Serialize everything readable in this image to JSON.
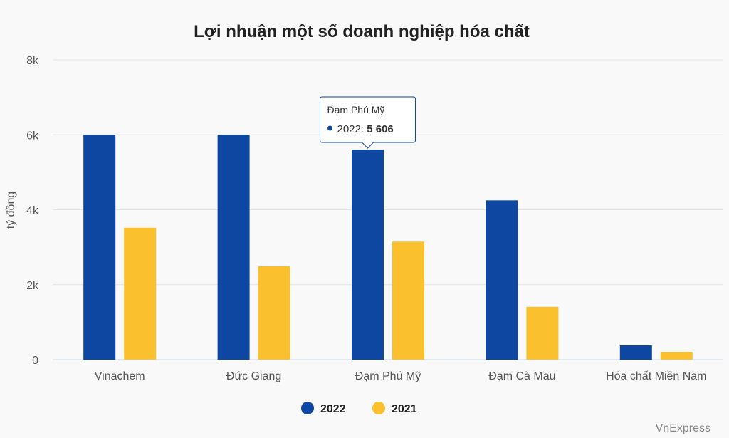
{
  "chart_data": {
    "type": "bar",
    "title": "Lợi nhuận một số doanh nghiệp hóa chất",
    "ylabel": "tỷ đồng",
    "xlabel": "",
    "ylim": [
      0,
      8000
    ],
    "yticks": [
      0,
      2000,
      4000,
      6000,
      8000
    ],
    "ytick_labels": [
      "0",
      "2k",
      "4k",
      "6k",
      "8k"
    ],
    "categories": [
      "Vinachem",
      "Đức Giang",
      "Đạm Phú Mỹ",
      "Đạm Cà Mau",
      "Hóa chất Miền Nam"
    ],
    "series": [
      {
        "name": "2022",
        "color": "#0d47a1",
        "values": [
          6000,
          6000,
          5606,
          4250,
          380
        ]
      },
      {
        "name": "2021",
        "color": "#fbc02d",
        "values": [
          3520,
          2490,
          3150,
          1410,
          210
        ]
      }
    ],
    "grid": true,
    "legend_position": "bottom-center",
    "tooltip": {
      "category": "Đạm Phú Mỹ",
      "series": "2022",
      "label": "2022: ",
      "value": "5 606"
    },
    "credit": "VnExpress"
  }
}
